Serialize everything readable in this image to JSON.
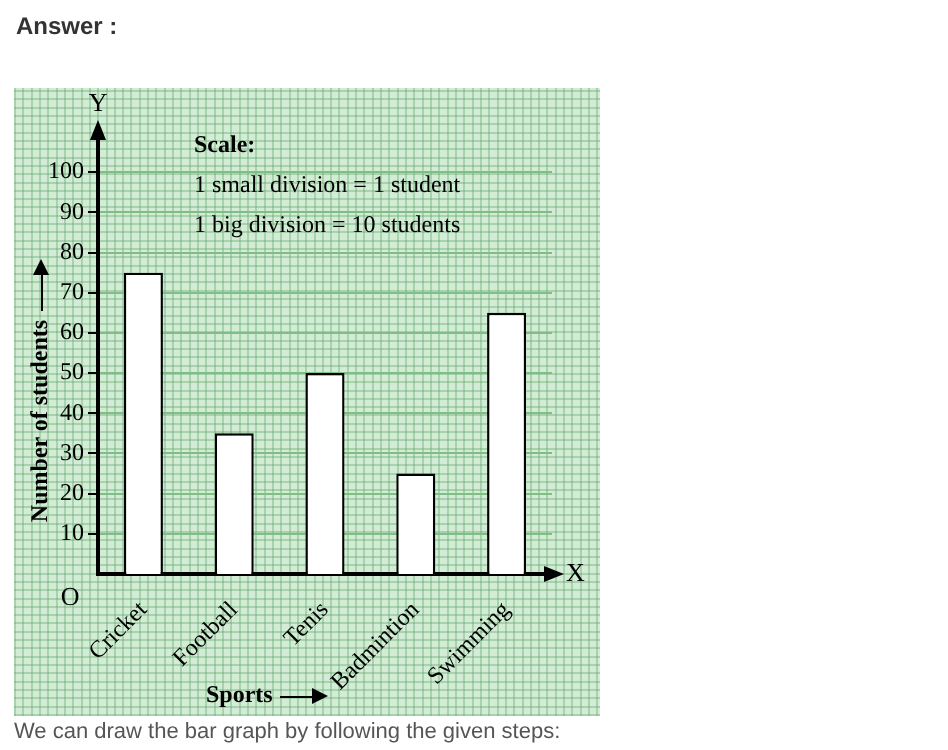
{
  "chart_data": {
    "type": "bar",
    "title": "Answer :",
    "xlabel": "Sports",
    "ylabel": "Number of students",
    "categories": [
      "Cricket",
      "Football",
      "Tenis",
      "Badmintion",
      "Swimming"
    ],
    "values": [
      75,
      35,
      50,
      25,
      65
    ],
    "color": "#ffffff",
    "ylim": [
      0,
      110
    ],
    "yticks": [
      10,
      20,
      30,
      40,
      50,
      60,
      70,
      80,
      90,
      100
    ],
    "grid": "y",
    "legend": false,
    "annotations": [
      "Scale:",
      "1 small division = 1 student",
      "1 big division = 10 students",
      "Y",
      "X",
      "O",
      "We can draw the bar graph by following the given steps:"
    ]
  }
}
